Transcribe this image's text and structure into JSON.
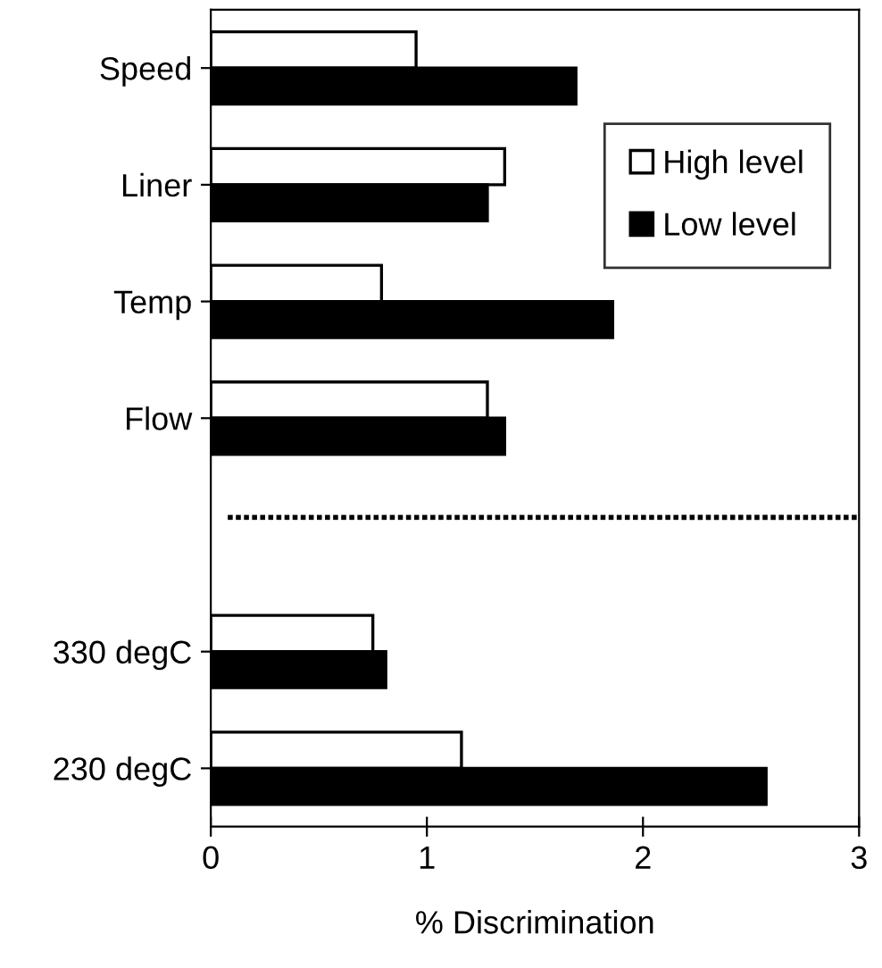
{
  "chart_data": {
    "type": "bar",
    "orientation": "horizontal",
    "xlabel": "% Discrimination",
    "categories": [
      "Speed",
      "Liner",
      "Temp",
      "Flow",
      null,
      "330 degC",
      "230 degC"
    ],
    "series": [
      {
        "name": "High level",
        "color": "#ffffff",
        "values": [
          0.95,
          1.36,
          0.79,
          1.28,
          null,
          0.75,
          1.16
        ]
      },
      {
        "name": "Low level",
        "color": "#000000",
        "values": [
          1.69,
          1.28,
          1.86,
          1.36,
          null,
          0.81,
          2.57
        ]
      }
    ],
    "xlim": [
      0,
      3
    ],
    "xticks": [
      0,
      1,
      2,
      3
    ],
    "grid": false,
    "legend": "top right"
  }
}
